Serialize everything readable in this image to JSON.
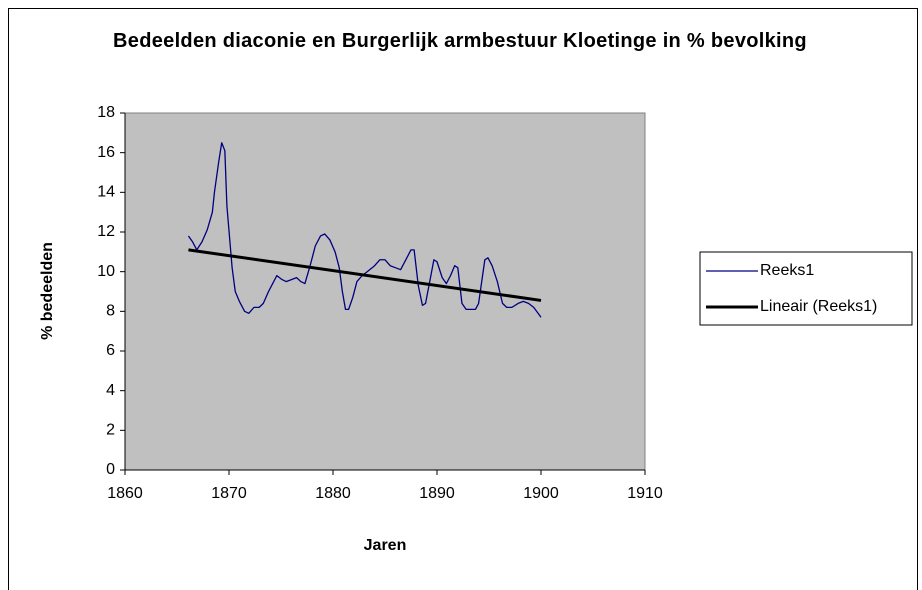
{
  "chart_data": {
    "type": "line",
    "title": "Bedeelden diaconie en Burgerlijk armbestuur Kloetinge in % bevolking",
    "xlabel": "Jaren",
    "ylabel": "% bedeelden",
    "xlim": [
      1860,
      1910
    ],
    "xticks": [
      1860,
      1870,
      1880,
      1890,
      1900,
      1910
    ],
    "ylim": [
      0,
      18
    ],
    "yticks": [
      0,
      2,
      4,
      6,
      8,
      10,
      12,
      14,
      16,
      18
    ],
    "grid": false,
    "legend": "right",
    "series": [
      {
        "name": "Reeks1",
        "color": "#000080",
        "width": 1.3,
        "x": [
          1866.1,
          1866.5,
          1866.9,
          1867.4,
          1867.9,
          1868.4,
          1868.6,
          1869.0,
          1869.3,
          1869.6,
          1869.8,
          1870.3,
          1870.6,
          1871.0,
          1871.5,
          1871.9,
          1872.4,
          1872.9,
          1873.3,
          1873.8,
          1874.3,
          1874.6,
          1875.1,
          1875.5,
          1876.0,
          1876.5,
          1876.9,
          1877.3,
          1877.8,
          1878.3,
          1878.8,
          1879.2,
          1879.7,
          1880.2,
          1880.6,
          1880.9,
          1881.2,
          1881.5,
          1881.9,
          1882.3,
          1882.8,
          1883.3,
          1884.0,
          1884.5,
          1885.0,
          1885.5,
          1886.0,
          1886.5,
          1887.0,
          1887.5,
          1887.8,
          1888.2,
          1888.6,
          1888.9,
          1889.3,
          1889.7,
          1890.0,
          1890.5,
          1890.9,
          1891.3,
          1891.7,
          1892.0,
          1892.4,
          1892.8,
          1893.7,
          1894.0,
          1894.6,
          1894.9,
          1895.3,
          1895.8,
          1896.3,
          1896.7,
          1897.2,
          1897.8,
          1898.3,
          1898.8,
          1899.3,
          1900.0
        ],
        "values": [
          11.8,
          11.5,
          11.1,
          11.5,
          12.1,
          13.0,
          14.0,
          15.5,
          16.5,
          16.1,
          13.3,
          10.2,
          9.0,
          8.5,
          8.0,
          7.9,
          8.2,
          8.2,
          8.4,
          9.0,
          9.5,
          9.8,
          9.6,
          9.5,
          9.6,
          9.7,
          9.5,
          9.4,
          10.3,
          11.3,
          11.8,
          11.9,
          11.6,
          11.0,
          10.2,
          9.0,
          8.1,
          8.1,
          8.7,
          9.5,
          9.8,
          10.0,
          10.3,
          10.6,
          10.6,
          10.3,
          10.2,
          10.1,
          10.6,
          11.1,
          11.1,
          9.3,
          8.3,
          8.4,
          9.5,
          10.6,
          10.5,
          9.7,
          9.4,
          9.8,
          10.3,
          10.2,
          8.4,
          8.1,
          8.1,
          8.4,
          10.6,
          10.7,
          10.3,
          9.5,
          8.4,
          8.2,
          8.2,
          8.4,
          8.5,
          8.4,
          8.2,
          7.7
        ]
      },
      {
        "name": "Lineair (Reeks1)",
        "color": "#000000",
        "width": 3,
        "x": [
          1866.1,
          1900.0
        ],
        "values": [
          11.1,
          8.55
        ]
      }
    ]
  }
}
